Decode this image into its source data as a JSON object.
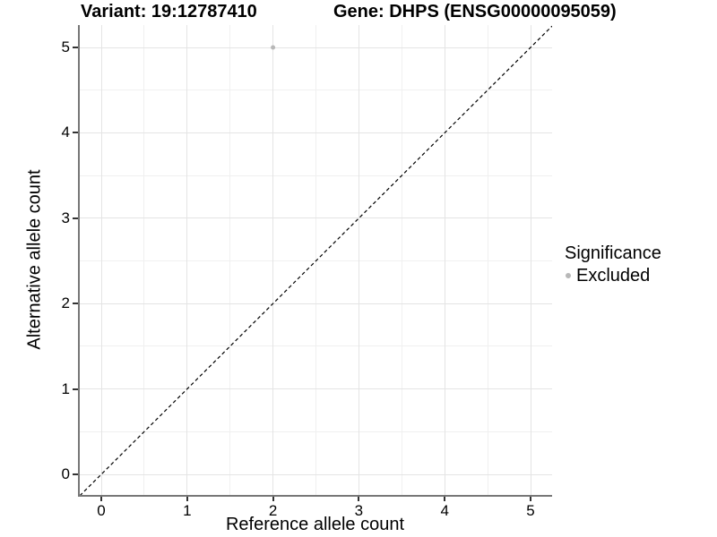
{
  "chart_data": {
    "type": "scatter",
    "title_left": "Variant: 19:12787410",
    "title_right": "Gene: DHPS (ENSG00000095059)",
    "xlabel": "Reference allele count",
    "ylabel": "Alternative allele count",
    "xticks": [
      0,
      1,
      2,
      3,
      4,
      5
    ],
    "yticks": [
      0,
      1,
      2,
      3,
      4,
      5
    ],
    "xlim": [
      -0.25,
      5.25
    ],
    "ylim": [
      -0.25,
      5.25
    ],
    "grid": {
      "major": true,
      "minor": true
    },
    "points": [
      {
        "x": 2,
        "y": 5,
        "series": "Excluded"
      }
    ],
    "identity_line": {
      "style": "dashed",
      "color": "#000000",
      "from": [
        -0.25,
        -0.25
      ],
      "to": [
        5.25,
        5.25
      ]
    },
    "legend": {
      "title": "Significance",
      "position": "right",
      "entries": [
        {
          "label": "Excluded",
          "color": "#b8b8b8",
          "marker": "circle"
        }
      ]
    },
    "colors": {
      "excluded_point": "#b8b8b8",
      "grid_major": "#e4e4e4",
      "grid_minor": "#f0f0f0",
      "axis_line": "#777777",
      "tick_mark": "#333333",
      "text": "#000000"
    }
  }
}
